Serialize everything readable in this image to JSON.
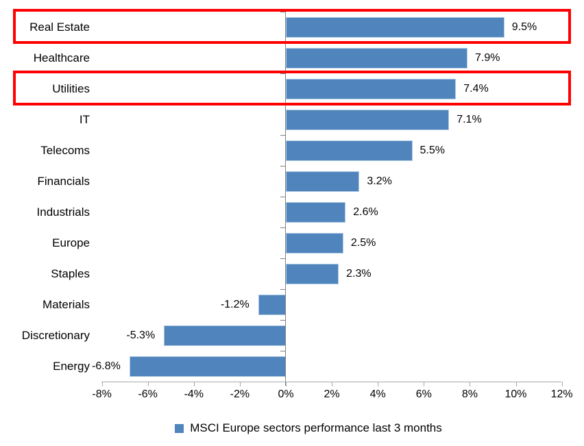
{
  "chart_data": {
    "type": "bar",
    "orientation": "horizontal",
    "title": "",
    "categories": [
      "Real Estate",
      "Healthcare",
      "Utilities",
      "IT",
      "Telecoms",
      "Financials",
      "Industrials",
      "Europe",
      "Staples",
      "Materials",
      "Discretionary",
      "Energy"
    ],
    "values": [
      9.5,
      7.9,
      7.4,
      7.1,
      5.5,
      3.2,
      2.6,
      2.5,
      2.3,
      -1.2,
      -5.3,
      -6.8
    ],
    "value_labels": [
      "9.5%",
      "7.9%",
      "7.4%",
      "7.1%",
      "5.5%",
      "3.2%",
      "2.6%",
      "2.5%",
      "2.3%",
      "-1.2%",
      "-5.3%",
      "-6.8%"
    ],
    "xlabel": "",
    "ylabel": "",
    "xlim": [
      -8,
      12
    ],
    "x_ticks": [
      -8,
      -6,
      -4,
      -2,
      0,
      2,
      4,
      6,
      8,
      10,
      12
    ],
    "x_tick_labels": [
      "-8%",
      "-6%",
      "-4%",
      "-2%",
      "0%",
      "2%",
      "4%",
      "6%",
      "8%",
      "10%",
      "12%"
    ],
    "grid": false,
    "legend_position": "bottom",
    "legend": [
      {
        "label": "MSCI Europe sectors performance last 3 months",
        "color": "#4f84bc"
      }
    ],
    "bar_color": "#4f84bc",
    "highlighted_categories": [
      "Real Estate",
      "Utilities"
    ],
    "highlight_color": "#ff0000"
  },
  "colors": {
    "value_axis_line": "#7f7f7f",
    "category_axis_line": "#a6a6a6",
    "text": "#000000",
    "background": "#ffffff"
  }
}
